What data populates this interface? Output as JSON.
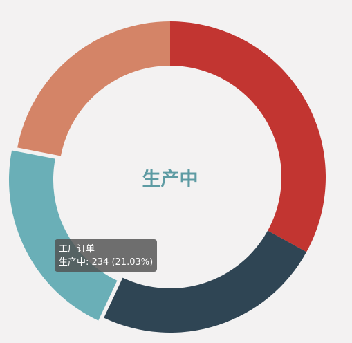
{
  "chart_data": {
    "type": "pie",
    "subtype": "donut",
    "series_name": "工厂订单",
    "center_label": "生产中",
    "center_label_color": "#5d9ba3",
    "slices": [
      {
        "name": "",
        "value": 33.0,
        "color": "#c23531"
      },
      {
        "name": "",
        "value": 24.0,
        "color": "#2f4554"
      },
      {
        "name": "生产中",
        "value": 21.03,
        "color": "#6aafb7"
      },
      {
        "name": "",
        "value": 21.97,
        "color": "#d48467"
      }
    ],
    "start_angle_deg": 90,
    "direction": "clockwise"
  },
  "tooltip": {
    "title": "工厂订单",
    "line": "生产中: 234 (21.03%)"
  },
  "colors": {
    "background": "#f3f2f2",
    "tooltip_bg": "#505050"
  }
}
